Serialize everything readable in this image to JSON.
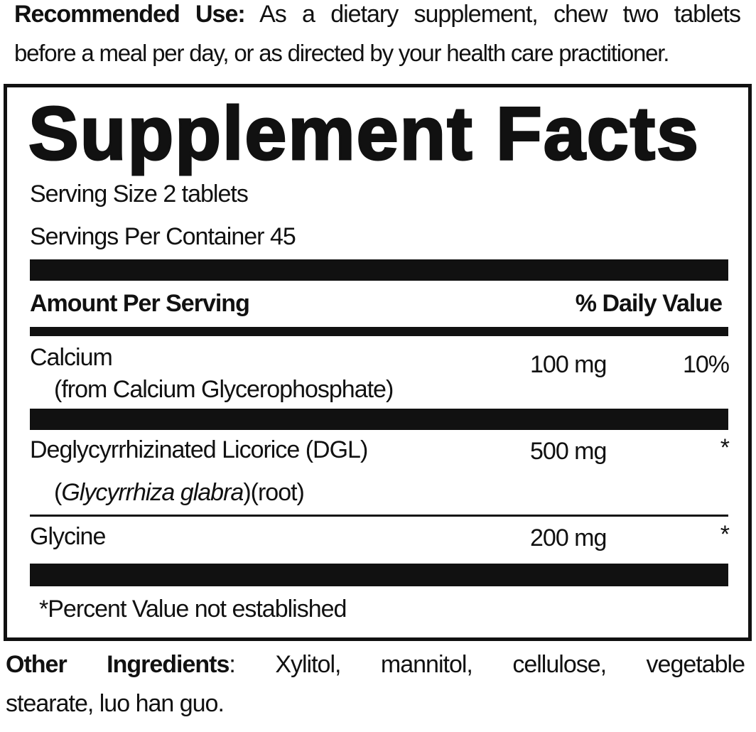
{
  "recommended_use": {
    "label": "Recommended Use:",
    "line1": "As a dietary supplement, chew two tablets",
    "line2": "before a meal per day, or as directed by your health care practitioner."
  },
  "facts": {
    "title": "Supplement Facts",
    "serving_size": "Serving Size 2 tablets",
    "servings_per_container": "Servings Per Container 45",
    "header_amount": "Amount Per Serving",
    "header_dv": "% Daily Value",
    "rows": [
      {
        "name": "Calcium",
        "sub": "(from Calcium Glycerophosphate)",
        "amount": "100 mg",
        "dv": "10%"
      },
      {
        "name": "Deglycyrrhizinated Licorice (DGL)",
        "sub_open": "(",
        "sub_italic": "Glycyrrhiza glabra",
        "sub_close": ")(root)",
        "amount": "500 mg",
        "dv": "*"
      },
      {
        "name": "Glycine",
        "amount": "200 mg",
        "dv": "*"
      }
    ],
    "footnote": "*Percent Value not established"
  },
  "other_ingredients": {
    "label": "Other Ingredients",
    "colon": ":",
    "line1": "Xylitol, mannitol, cellulose, vegetable",
    "line2": "stearate, luo han guo."
  }
}
